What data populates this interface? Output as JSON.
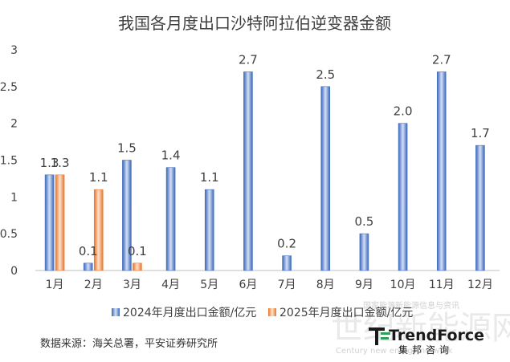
{
  "chart_data": {
    "type": "bar",
    "title": "我国各月度出口沙特阿拉伯逆变器金额",
    "categories": [
      "1月",
      "2月",
      "3月",
      "4月",
      "5月",
      "6月",
      "7月",
      "8月",
      "9月",
      "10月",
      "11月",
      "12月"
    ],
    "series": [
      {
        "name": "2024年月度出口金额/亿元",
        "values": [
          1.3,
          0.1,
          1.5,
          1.4,
          1.1,
          2.7,
          0.2,
          2.5,
          0.5,
          2.0,
          2.7,
          1.7
        ],
        "color": "#4472c4",
        "labels": [
          "1.3",
          "0.1",
          "1.5",
          "1.4",
          "1.1",
          "2.7",
          "0.2",
          "2.5",
          "0.5",
          "2.0",
          "2.7",
          "1.7"
        ]
      },
      {
        "name": "2025年月度出口金额/亿元",
        "values": [
          1.3,
          1.1,
          0.1,
          null,
          null,
          null,
          null,
          null,
          null,
          null,
          null,
          null
        ],
        "color": "#ed7d31",
        "labels": [
          "1.3",
          "1.1",
          "0.1",
          "",
          "",
          "",
          "",
          "",
          "",
          "",
          "",
          ""
        ]
      }
    ],
    "yticks": [
      "0",
      "0.5",
      "1",
      "1.5",
      "2",
      "2.5",
      "3"
    ],
    "ylim": [
      0,
      3
    ],
    "grid": false,
    "legend_position": "bottom",
    "xlabel": "",
    "ylabel": ""
  },
  "source": "数据来源：海关总署，平安证券研究所",
  "watermark": {
    "line1": "国家能源新能源信息与资讯",
    "line2": "世纪新能源网",
    "line3": "Century new energy network",
    "brand": "TrendForce",
    "brand_cn": "集邦咨询"
  }
}
